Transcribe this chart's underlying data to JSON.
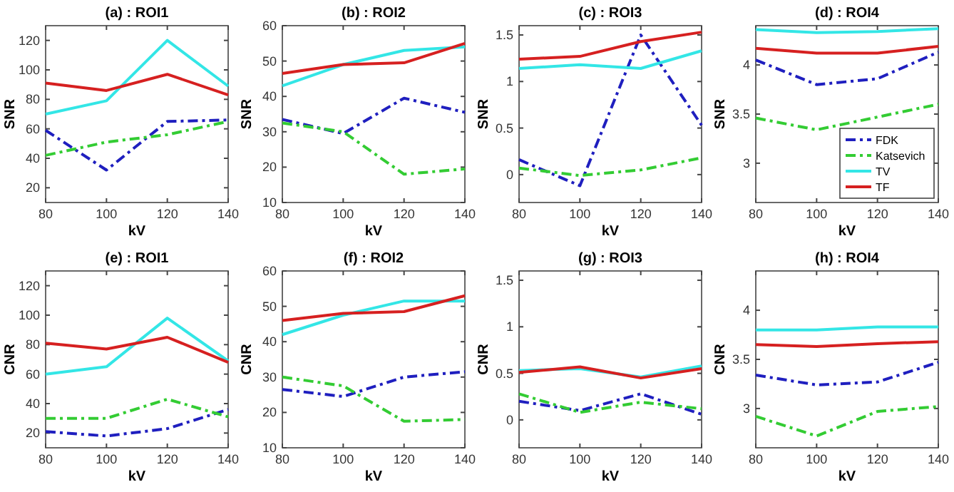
{
  "chart_data": [
    {
      "type": "line",
      "title": "(a) : ROI1",
      "xlabel": "kV",
      "ylabel": "SNR",
      "x": [
        80,
        100,
        120,
        140
      ],
      "xlim": [
        80,
        140
      ],
      "xticks": [
        80,
        100,
        120,
        140
      ],
      "ylim": [
        10,
        130
      ],
      "yticks": [
        20,
        40,
        60,
        80,
        100,
        120
      ],
      "legend": false,
      "series": [
        {
          "color": "#1f1fbf",
          "line_style": "dashed",
          "values": [
            59,
            32,
            65,
            66
          ]
        },
        {
          "color": "#33cc33",
          "line_style": "dashed",
          "values": [
            42,
            51,
            56,
            65
          ]
        },
        {
          "color": "#33e6e6",
          "line_style": "solid",
          "values": [
            70,
            79,
            120,
            89
          ]
        },
        {
          "color": "#d62020",
          "line_style": "solid",
          "values": [
            91,
            86,
            97,
            83
          ]
        }
      ]
    },
    {
      "type": "line",
      "title": "(b) : ROI2",
      "xlabel": "kV",
      "ylabel": "SNR",
      "x": [
        80,
        100,
        120,
        140
      ],
      "xlim": [
        80,
        140
      ],
      "xticks": [
        80,
        100,
        120,
        140
      ],
      "ylim": [
        10,
        60
      ],
      "yticks": [
        10,
        20,
        30,
        40,
        50,
        60
      ],
      "legend": false,
      "series": [
        {
          "color": "#1f1fbf",
          "line_style": "dashed",
          "values": [
            33.5,
            29.5,
            39.5,
            35.5
          ]
        },
        {
          "color": "#33cc33",
          "line_style": "dashed",
          "values": [
            32.5,
            30,
            18,
            19.5
          ]
        },
        {
          "color": "#33e6e6",
          "line_style": "solid",
          "values": [
            43,
            49,
            53,
            54
          ]
        },
        {
          "color": "#d62020",
          "line_style": "solid",
          "values": [
            46.5,
            49,
            49.5,
            55
          ]
        }
      ]
    },
    {
      "type": "line",
      "title": "(c) : ROI3",
      "xlabel": "kV",
      "ylabel": "SNR",
      "x": [
        80,
        100,
        120,
        140
      ],
      "xlim": [
        80,
        140
      ],
      "xticks": [
        80,
        100,
        120,
        140
      ],
      "ylim": [
        -0.3,
        1.6
      ],
      "yticks": [
        0,
        0.5,
        1,
        1.5
      ],
      "legend": false,
      "series": [
        {
          "color": "#1f1fbf",
          "line_style": "dashed",
          "values": [
            0.16,
            -0.12,
            1.5,
            0.53
          ]
        },
        {
          "color": "#33cc33",
          "line_style": "dashed",
          "values": [
            0.07,
            -0.01,
            0.05,
            0.18
          ]
        },
        {
          "color": "#33e6e6",
          "line_style": "solid",
          "values": [
            1.14,
            1.18,
            1.14,
            1.33
          ]
        },
        {
          "color": "#d62020",
          "line_style": "solid",
          "values": [
            1.24,
            1.27,
            1.43,
            1.53
          ]
        }
      ]
    },
    {
      "type": "line",
      "title": "(d) : ROI4",
      "xlabel": "kV",
      "ylabel": "SNR",
      "x": [
        80,
        100,
        120,
        140
      ],
      "xlim": [
        80,
        140
      ],
      "xticks": [
        80,
        100,
        120,
        140
      ],
      "ylim": [
        2.6,
        4.4
      ],
      "yticks": [
        3,
        3.5,
        4
      ],
      "legend": "bottom right",
      "series": [
        {
          "name": "FDK",
          "color": "#1f1fbf",
          "line_style": "dashed",
          "values": [
            4.05,
            3.8,
            3.86,
            4.13
          ]
        },
        {
          "name": "Katsevich",
          "color": "#33cc33",
          "line_style": "dashed",
          "values": [
            3.46,
            3.34,
            3.47,
            3.6
          ]
        },
        {
          "name": "TV",
          "color": "#33e6e6",
          "line_style": "solid",
          "values": [
            4.36,
            4.33,
            4.34,
            4.37
          ]
        },
        {
          "name": "TF",
          "color": "#d62020",
          "line_style": "solid",
          "values": [
            4.17,
            4.12,
            4.12,
            4.19
          ]
        }
      ]
    },
    {
      "type": "line",
      "title": "(e) : ROI1",
      "xlabel": "kV",
      "ylabel": "CNR",
      "x": [
        80,
        100,
        120,
        140
      ],
      "xlim": [
        80,
        140
      ],
      "xticks": [
        80,
        100,
        120,
        140
      ],
      "ylim": [
        10,
        130
      ],
      "yticks": [
        20,
        40,
        60,
        80,
        100,
        120
      ],
      "legend": false,
      "series": [
        {
          "color": "#1f1fbf",
          "line_style": "dashed",
          "values": [
            21,
            18,
            23,
            36
          ]
        },
        {
          "color": "#33cc33",
          "line_style": "dashed",
          "values": [
            30,
            30,
            43,
            31
          ]
        },
        {
          "color": "#33e6e6",
          "line_style": "solid",
          "values": [
            60,
            65,
            98,
            69
          ]
        },
        {
          "color": "#d62020",
          "line_style": "solid",
          "values": [
            81,
            77,
            85,
            68
          ]
        }
      ]
    },
    {
      "type": "line",
      "title": "(f) : ROI2",
      "xlabel": "kV",
      "ylabel": "CNR",
      "x": [
        80,
        100,
        120,
        140
      ],
      "xlim": [
        80,
        140
      ],
      "xticks": [
        80,
        100,
        120,
        140
      ],
      "ylim": [
        10,
        60
      ],
      "yticks": [
        10,
        20,
        30,
        40,
        50,
        60
      ],
      "legend": false,
      "series": [
        {
          "color": "#1f1fbf",
          "line_style": "dashed",
          "values": [
            26.5,
            24.5,
            30,
            31.5
          ]
        },
        {
          "color": "#33cc33",
          "line_style": "dashed",
          "values": [
            30,
            27.5,
            17.5,
            18
          ]
        },
        {
          "color": "#33e6e6",
          "line_style": "solid",
          "values": [
            42,
            47.5,
            51.5,
            51.5
          ]
        },
        {
          "color": "#d62020",
          "line_style": "solid",
          "values": [
            46,
            48,
            48.5,
            53
          ]
        }
      ]
    },
    {
      "type": "line",
      "title": "(g) : ROI3",
      "xlabel": "kV",
      "ylabel": "CNR",
      "x": [
        80,
        100,
        120,
        140
      ],
      "xlim": [
        80,
        140
      ],
      "xticks": [
        80,
        100,
        120,
        140
      ],
      "ylim": [
        -0.3,
        1.6
      ],
      "yticks": [
        0,
        0.5,
        1,
        1.5
      ],
      "legend": false,
      "series": [
        {
          "color": "#1f1fbf",
          "line_style": "dashed",
          "values": [
            0.2,
            0.1,
            0.28,
            0.06
          ]
        },
        {
          "color": "#33cc33",
          "line_style": "dashed",
          "values": [
            0.28,
            0.08,
            0.19,
            0.12
          ]
        },
        {
          "color": "#33e6e6",
          "line_style": "solid",
          "values": [
            0.53,
            0.55,
            0.46,
            0.58
          ]
        },
        {
          "color": "#d62020",
          "line_style": "solid",
          "values": [
            0.51,
            0.57,
            0.45,
            0.55
          ]
        }
      ]
    },
    {
      "type": "line",
      "title": "(h) : ROI4",
      "xlabel": "kV",
      "ylabel": "CNR",
      "x": [
        80,
        100,
        120,
        140
      ],
      "xlim": [
        80,
        140
      ],
      "xticks": [
        80,
        100,
        120,
        140
      ],
      "ylim": [
        2.6,
        4.4
      ],
      "yticks": [
        3,
        3.5,
        4
      ],
      "legend": false,
      "series": [
        {
          "color": "#1f1fbf",
          "line_style": "dashed",
          "values": [
            3.34,
            3.24,
            3.27,
            3.47
          ]
        },
        {
          "color": "#33cc33",
          "line_style": "dashed",
          "values": [
            2.92,
            2.72,
            2.97,
            3.02
          ]
        },
        {
          "color": "#33e6e6",
          "line_style": "solid",
          "values": [
            3.8,
            3.8,
            3.83,
            3.83
          ]
        },
        {
          "color": "#d62020",
          "line_style": "solid",
          "values": [
            3.65,
            3.63,
            3.66,
            3.68
          ]
        }
      ]
    }
  ]
}
